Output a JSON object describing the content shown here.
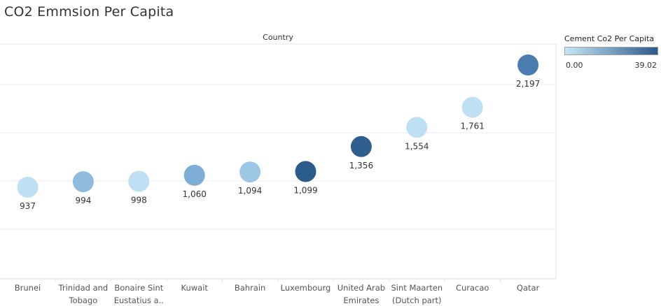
{
  "title": "CO2 Emmsion Per Capita",
  "header_label": "Country",
  "legend": {
    "title": "Cement Co2 Per Capita",
    "min_label": "0.00",
    "max_label": "39.02",
    "min_color": "#c7e6f5",
    "max_color": "#2b5b8b"
  },
  "chart_data": {
    "type": "scatter",
    "xlabel": "Country",
    "categories": [
      [
        "Brunei"
      ],
      [
        "Trinidad and",
        "Tobago"
      ],
      [
        "Bonaire Sint",
        "Eustatius a.."
      ],
      [
        "Kuwait"
      ],
      [
        "Bahrain"
      ],
      [
        "Luxembourg"
      ],
      [
        "United Arab",
        "Emirates"
      ],
      [
        "Sint Maarten",
        "(Dutch part)"
      ],
      [
        "Curacao"
      ],
      [
        "Qatar"
      ]
    ],
    "values": [
      937,
      994,
      998,
      1060,
      1094,
      1099,
      1356,
      1554,
      1761,
      2197
    ],
    "value_labels": [
      "937",
      "994",
      "998",
      "1,060",
      "1,094",
      "1,099",
      "1,356",
      "1,554",
      "1,761",
      "2,197"
    ],
    "point_colors": [
      "#bfe0f2",
      "#8fbbdd",
      "#bee0f2",
      "#7eaed5",
      "#9dc7e5",
      "#2b5b8b",
      "#2f5f8f",
      "#bde0f2",
      "#bde0f2",
      "#4a7cad"
    ],
    "ylim": [
      0,
      2500
    ],
    "grid": true,
    "legend_position": "top-right"
  }
}
